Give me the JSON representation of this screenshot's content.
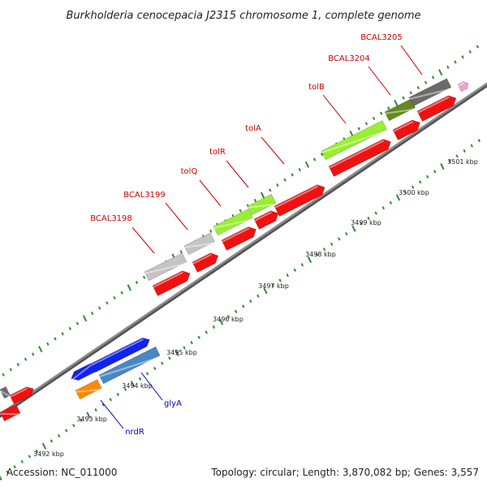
{
  "title": "Burkholderia cenocepacia J2315 chromosome 1, complete genome",
  "accession": "Accession: NC_011000",
  "topology": "Topology: circular; Length: 3,870,082 bp; Genes: 3,557",
  "colors": {
    "backbone": "#8c8c8c",
    "tick_green": "#2e8b2e",
    "label_red": "#cc0000",
    "label_blue": "#0000cc",
    "cds_red": "#ee1111",
    "cds_lime": "#99ee33",
    "cds_olive": "#668822",
    "cds_gray": "#c4c4c4",
    "cds_dark_gray": "#6a6a6a",
    "cds_blue": "#1122ee",
    "cds_steel": "#4a86c4",
    "cds_orange": "#ff8800",
    "cds_pink": "#f0a0cc"
  },
  "scale_labels": [
    "3492 kbp",
    "3493 kbp",
    "3494 kbp",
    "3495 kbp",
    "3496 kbp",
    "3497 kbp",
    "3498 kbp",
    "3499 kbp",
    "3500 kbp",
    "3501 kbp"
  ],
  "gene_labels": {
    "top": [
      "BCAL3198",
      "BCAL3199",
      "tolQ",
      "tolR",
      "tolA",
      "tolB",
      "BCAL3204",
      "BCAL3205"
    ],
    "bottom": [
      "nrdR",
      "glyA"
    ]
  }
}
